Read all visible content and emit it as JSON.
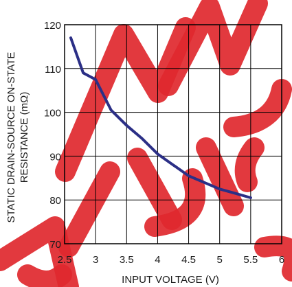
{
  "chart_data": {
    "type": "line",
    "xlabel": "INPUT VOLTAGE (V)",
    "ylabel_line1": "STATIC DRAIN-SOURCE ON-STATE",
    "ylabel_line2": "RESISTANCE (mΩ)",
    "xlim": [
      2.5,
      6
    ],
    "ylim": [
      70,
      120
    ],
    "x_ticks": [
      "2.5",
      "3",
      "3.5",
      "4",
      "4.5",
      "5",
      "5.5",
      "6"
    ],
    "y_ticks": [
      "70",
      "80",
      "90",
      "100",
      "110",
      "120"
    ],
    "grid": true,
    "line_color": "#2b2f86",
    "series": [
      {
        "x": [
          2.6,
          2.8,
          3.0,
          3.25,
          3.5,
          3.75,
          4.0,
          4.25,
          4.5,
          4.75,
          5.0,
          5.25,
          5.5
        ],
        "y": [
          117,
          109,
          107.5,
          100.5,
          97,
          94,
          90.5,
          88,
          85.5,
          84,
          82.5,
          81.5,
          80.5
        ]
      }
    ]
  },
  "watermark": {
    "color": "#e0282e"
  }
}
